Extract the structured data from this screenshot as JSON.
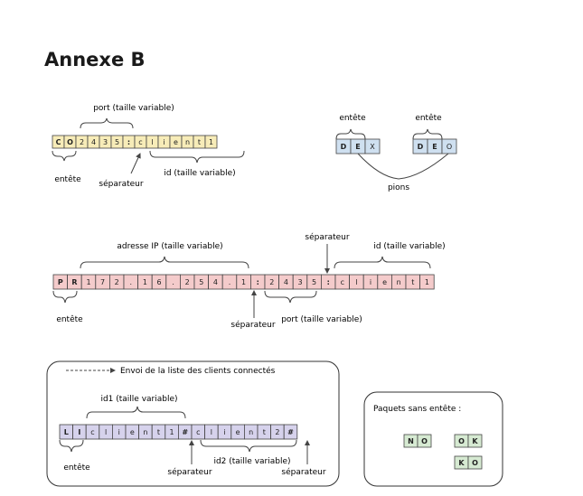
{
  "title": "Annexe B",
  "colors": {
    "yellow": "#f7ecb8",
    "blue": "#cfe0f0",
    "pink": "#f4cbcb",
    "lavender": "#d6d2ec",
    "green": "#d6ead2",
    "stroke": "#444444"
  },
  "diagram1": {
    "cells": [
      "C",
      "O",
      "2",
      "4",
      "3",
      "5",
      ":",
      "c",
      "l",
      "i",
      "e",
      "n",
      "t",
      "1"
    ],
    "port_label": "port (taille variable)",
    "header_label": "entête",
    "separator_label": "séparateur",
    "id_label": "id (taille variable)"
  },
  "diagram2": {
    "header1_label": "entête",
    "header2_label": "entête",
    "move1": [
      "D",
      "E",
      "X"
    ],
    "move2": [
      "D",
      "E",
      "O"
    ],
    "pieces_label": "pions"
  },
  "diagram3": {
    "cells": [
      "P",
      "R",
      "1",
      "7",
      "2",
      ".",
      "1",
      "6",
      ".",
      "2",
      "5",
      "4",
      ".",
      "1",
      ":",
      "2",
      "4",
      "3",
      "5",
      ":",
      "c",
      "l",
      "i",
      "e",
      "n",
      "t",
      "1"
    ],
    "ip_label": "adresse IP (taille variable)",
    "separator_top_label": "séparateur",
    "id_label": "id (taille variable)",
    "header_label": "entête",
    "separator_bottom_label": "séparateur",
    "port_label": "port (taille variable)"
  },
  "diagram4": {
    "caption": "Envoi de la liste des clients connectés",
    "cells": [
      "L",
      "I",
      "c",
      "l",
      "i",
      "e",
      "n",
      "t",
      "1",
      "#",
      "c",
      "l",
      "i",
      "e",
      "n",
      "t",
      "2",
      "#"
    ],
    "id1_label": "id1 (taille variable)",
    "header_label": "entête",
    "separator1_label": "séparateur",
    "id2_label": "id2 (taille variable)",
    "separator2_label": "séparateur"
  },
  "diagram5": {
    "title": "Paquets sans entête :",
    "packets": [
      [
        "N",
        "O"
      ],
      [
        "O",
        "K"
      ],
      [
        "K",
        "O"
      ]
    ]
  }
}
